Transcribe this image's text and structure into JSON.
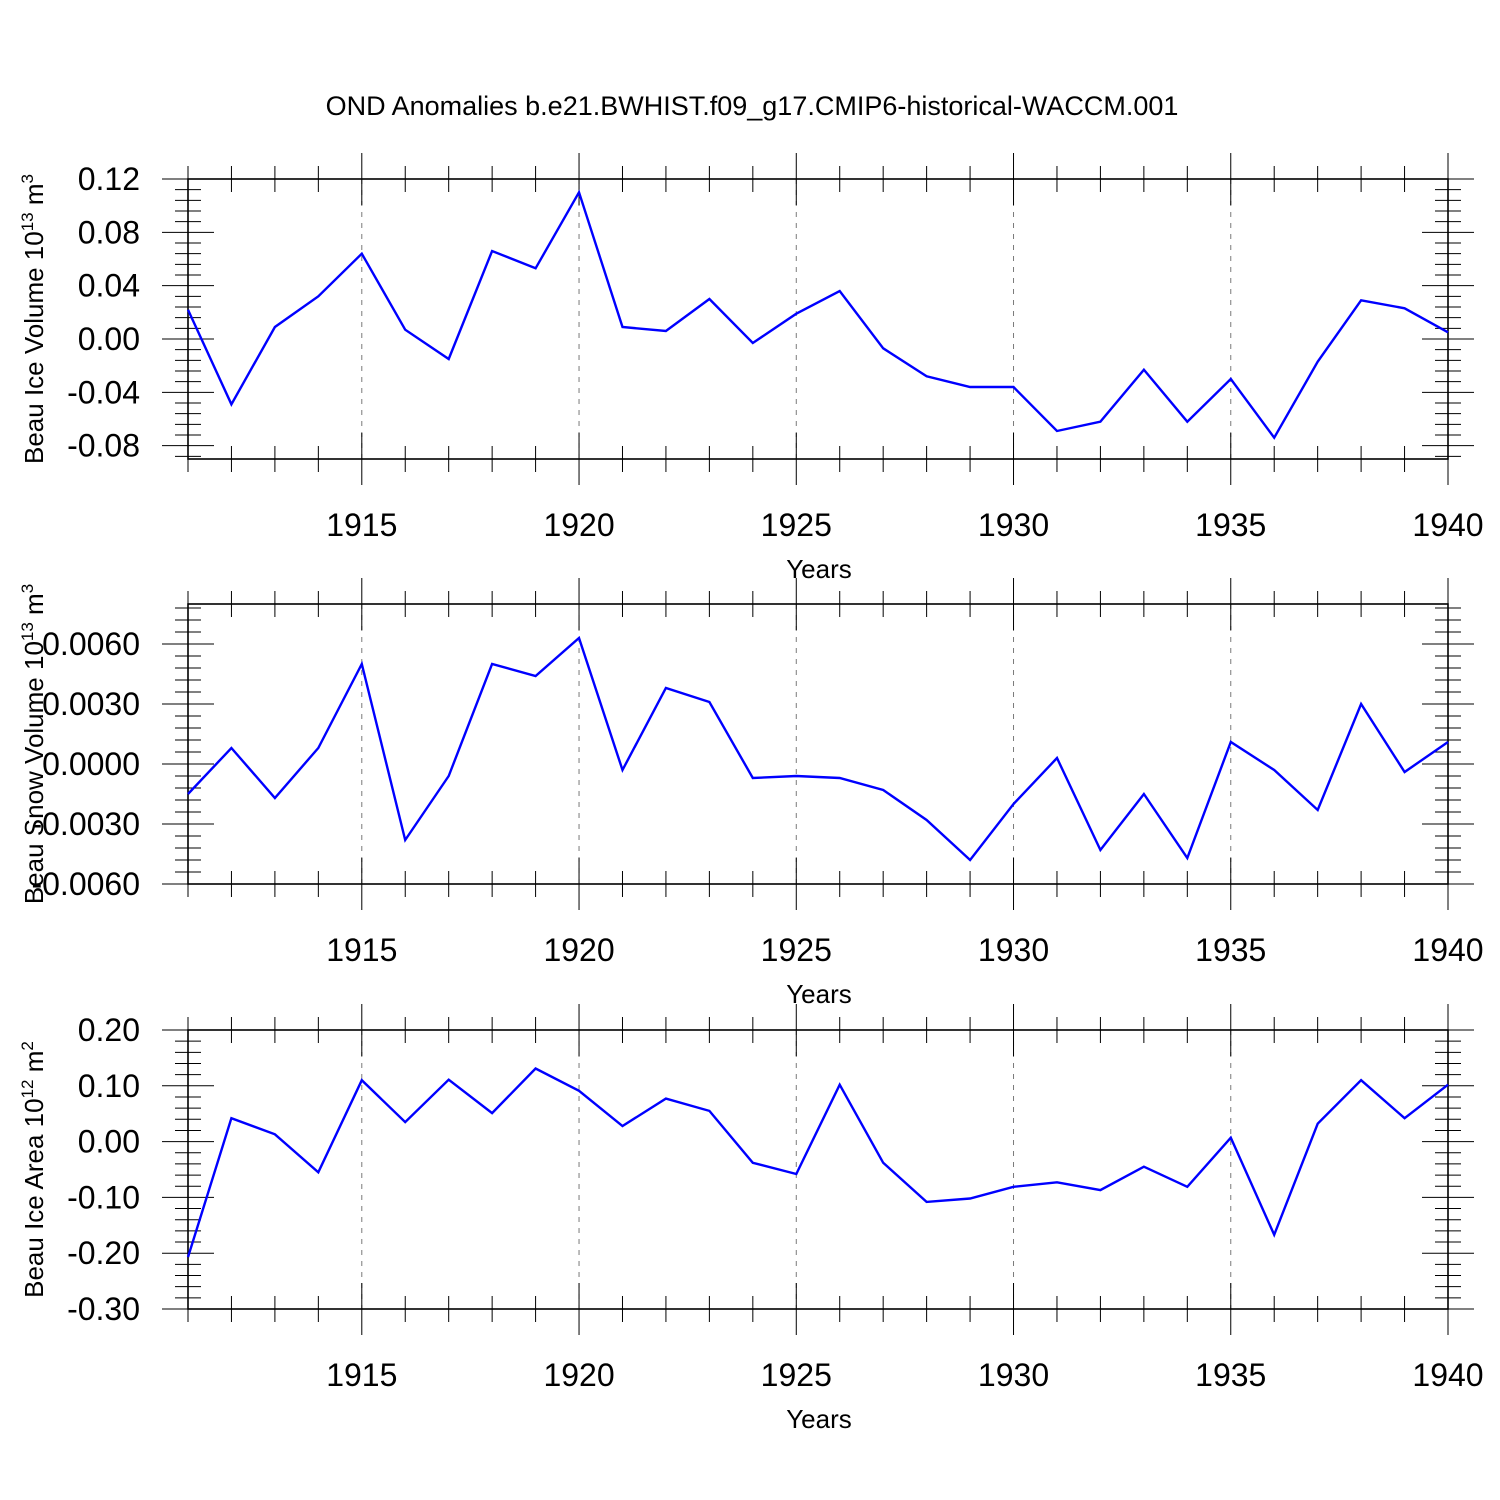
{
  "title": "OND Anomalies b.e21.BWHIST.f09_g17.CMIP6-historical-WACCM.001",
  "colors": {
    "series": "#0000ff",
    "frame": "#000000",
    "grid": "#7a7a7a"
  },
  "chart_data": [
    {
      "type": "line",
      "ylabel": "Beau Ice Volume 10",
      "ylabel_exp": "13",
      "ylabel_unit": " m",
      "ylabel_unit_exp": "3",
      "xlabel": "Years",
      "xlim": [
        1911,
        1940
      ],
      "ylim": [
        -0.09,
        0.12
      ],
      "yticks": [
        0.12,
        0.08,
        0.04,
        0.0,
        -0.04,
        -0.08
      ],
      "ytick_labels": [
        "0.12",
        "0.08",
        "0.04",
        "0.00",
        "-0.04",
        "-0.08"
      ],
      "xticks": [
        1915,
        1920,
        1925,
        1930,
        1935,
        1940
      ],
      "xtick_labels": [
        "1915",
        "1920",
        "1925",
        "1930",
        "1935",
        "1940"
      ],
      "grid": "vertical dashed at major x ticks",
      "x": [
        1911,
        1912,
        1913,
        1914,
        1915,
        1916,
        1917,
        1918,
        1919,
        1920,
        1921,
        1922,
        1923,
        1924,
        1925,
        1926,
        1927,
        1928,
        1929,
        1930,
        1931,
        1932,
        1933,
        1934,
        1935,
        1936,
        1937,
        1938,
        1939,
        1940
      ],
      "values": [
        0.022,
        -0.049,
        0.009,
        0.032,
        0.064,
        0.007,
        -0.015,
        0.066,
        0.053,
        0.11,
        0.009,
        0.006,
        0.03,
        -0.003,
        0.019,
        0.036,
        -0.007,
        -0.028,
        -0.036,
        -0.036,
        -0.069,
        -0.062,
        -0.023,
        -0.062,
        -0.03,
        -0.074,
        -0.017,
        0.029,
        0.023,
        0.005
      ]
    },
    {
      "type": "line",
      "ylabel": "Beau Snow Volume 10",
      "ylabel_exp": "13",
      "ylabel_unit": " m",
      "ylabel_unit_exp": "3",
      "xlabel": "Years",
      "xlim": [
        1911,
        1940
      ],
      "ylim": [
        -0.006,
        0.008
      ],
      "yticks": [
        0.006,
        0.003,
        0.0,
        -0.003,
        -0.006
      ],
      "ytick_labels": [
        "0.0060",
        "0.0030",
        "0.0000",
        "-0.0030",
        "-0.0060"
      ],
      "xticks": [
        1915,
        1920,
        1925,
        1930,
        1935,
        1940
      ],
      "xtick_labels": [
        "1915",
        "1920",
        "1925",
        "1930",
        "1935",
        "1940"
      ],
      "grid": "vertical dashed at major x ticks",
      "x": [
        1911,
        1912,
        1913,
        1914,
        1915,
        1916,
        1917,
        1918,
        1919,
        1920,
        1921,
        1922,
        1923,
        1924,
        1925,
        1926,
        1927,
        1928,
        1929,
        1930,
        1931,
        1932,
        1933,
        1934,
        1935,
        1936,
        1937,
        1938,
        1939,
        1940
      ],
      "values": [
        -0.0015,
        0.0008,
        -0.0017,
        0.0008,
        0.005,
        -0.0038,
        -0.0006,
        0.005,
        0.0044,
        0.0063,
        -0.0003,
        0.0038,
        0.0031,
        -0.0007,
        -0.0006,
        -0.0007,
        -0.0013,
        -0.0028,
        -0.0048,
        -0.002,
        0.0003,
        -0.0043,
        -0.0015,
        -0.0047,
        0.0011,
        -0.0003,
        -0.0023,
        0.003,
        -0.0004,
        0.0011
      ]
    },
    {
      "type": "line",
      "ylabel": "Beau Ice Area 10",
      "ylabel_exp": "12",
      "ylabel_unit": " m",
      "ylabel_unit_exp": "2",
      "xlabel": "Years",
      "xlim": [
        1911,
        1940
      ],
      "ylim": [
        -0.3,
        0.2
      ],
      "yticks": [
        0.2,
        0.1,
        0.0,
        -0.1,
        -0.2,
        -0.3
      ],
      "ytick_labels": [
        "0.20",
        "0.10",
        "0.00",
        "-0.10",
        "-0.20",
        "-0.30"
      ],
      "xticks": [
        1915,
        1920,
        1925,
        1930,
        1935,
        1940
      ],
      "xtick_labels": [
        "1915",
        "1920",
        "1925",
        "1930",
        "1935",
        "1940"
      ],
      "grid": "vertical dashed at major x ticks",
      "x": [
        1911,
        1912,
        1913,
        1914,
        1915,
        1916,
        1917,
        1918,
        1919,
        1920,
        1921,
        1922,
        1923,
        1924,
        1925,
        1926,
        1927,
        1928,
        1929,
        1930,
        1931,
        1932,
        1933,
        1934,
        1935,
        1936,
        1937,
        1938,
        1939,
        1940
      ],
      "values": [
        -0.207,
        0.042,
        0.013,
        -0.055,
        0.11,
        0.035,
        0.111,
        0.051,
        0.131,
        0.091,
        0.028,
        0.077,
        0.055,
        -0.038,
        -0.058,
        0.102,
        -0.038,
        -0.108,
        -0.102,
        -0.081,
        -0.073,
        -0.087,
        -0.045,
        -0.081,
        0.007,
        -0.167,
        0.032,
        0.11,
        0.042,
        0.102
      ]
    }
  ]
}
